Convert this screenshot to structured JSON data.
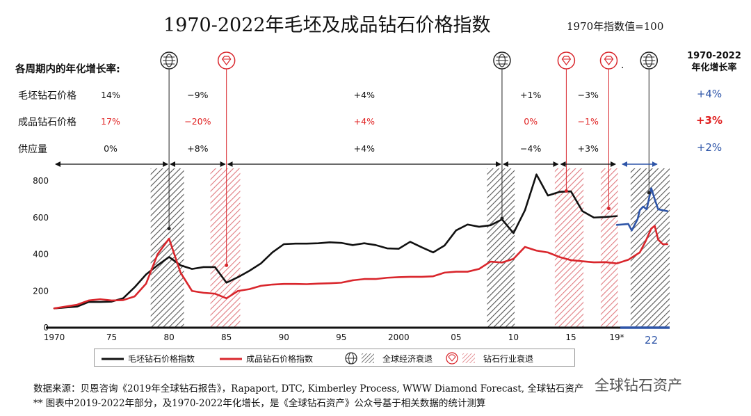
{
  "title": "1970-2022年毛坯及成品钻石价格指数",
  "subtitle": "1970年指数值=100",
  "rates_section": {
    "title": "各周期内的年化增长率:",
    "cagr_header": [
      "1970-2022",
      "年化增长率"
    ],
    "rows": [
      {
        "label": "毛坯钻石价格",
        "values": [
          "14%",
          "−9%",
          "+4%",
          "+1%",
          "−3%"
        ],
        "total": "+4%"
      },
      {
        "label": "成品钻石价格",
        "values": [
          "17%",
          "−20%",
          "+4%",
          "0%",
          "−1%"
        ],
        "total": "+3%"
      },
      {
        "label": "供应量",
        "values": [
          "0%",
          "+8%",
          "+4%",
          "−4%",
          "+3%"
        ],
        "total": "+2%"
      }
    ],
    "period_boundaries": [
      1970,
      1980,
      1985,
      2009,
      2014,
      2019,
      2022
    ],
    "dot": "."
  },
  "colors": {
    "rough": "#111111",
    "polished": "#d9262c",
    "forecast": "#2e55a8",
    "recession_hatch": "#555555",
    "industry_hatch": "#e07a80"
  },
  "chart_data": {
    "type": "line",
    "title": "1970-2022年毛坯及成品钻石价格指数",
    "xlabel": "",
    "ylabel": "",
    "xlim": [
      1970,
      2024
    ],
    "ylim": [
      0,
      850
    ],
    "yticks": [
      0,
      200,
      400,
      600,
      800
    ],
    "xticks": [
      {
        "year": 1970,
        "label": "1970"
      },
      {
        "year": 1975,
        "label": "75"
      },
      {
        "year": 1980,
        "label": "80"
      },
      {
        "year": 1985,
        "label": "85"
      },
      {
        "year": 1990,
        "label": "90"
      },
      {
        "year": 1995,
        "label": "95"
      },
      {
        "year": 2000,
        "label": "2000"
      },
      {
        "year": 2005,
        "label": "05"
      },
      {
        "year": 2010,
        "label": "10"
      },
      {
        "year": 2015,
        "label": "15"
      },
      {
        "year": 2019,
        "label": "19*"
      },
      {
        "year": 2022,
        "label": "22"
      }
    ],
    "series": [
      {
        "name": "毛坯钻石价格指数",
        "color": "#111111",
        "x": [
          1970,
          1971,
          1972,
          1973,
          1974,
          1975,
          1976,
          1977,
          1978,
          1979,
          1980,
          1981,
          1982,
          1983,
          1984,
          1985,
          1986,
          1987,
          1988,
          1989,
          1990,
          1991,
          1992,
          1993,
          1994,
          1995,
          1996,
          1997,
          1998,
          1999,
          2000,
          2001,
          2002,
          2003,
          2004,
          2005,
          2006,
          2007,
          2008,
          2009,
          2010,
          2011,
          2012,
          2013,
          2014,
          2015,
          2016,
          2017,
          2018,
          2019
        ],
        "y": [
          105,
          110,
          115,
          140,
          140,
          142,
          160,
          220,
          290,
          340,
          385,
          340,
          320,
          330,
          330,
          245,
          275,
          310,
          350,
          410,
          455,
          458,
          458,
          460,
          465,
          462,
          450,
          460,
          450,
          432,
          430,
          468,
          438,
          410,
          448,
          530,
          562,
          550,
          558,
          590,
          515,
          640,
          835,
          720,
          740,
          743,
          635,
          600,
          603,
          608
        ]
      },
      {
        "name": "毛坯钻石价格指数（2019-2022测算）",
        "color": "#2e55a8",
        "x": [
          2019,
          2020,
          2020.3,
          2020.8,
          2021,
          2021.3,
          2021.6,
          2022,
          2022.3,
          2022.6,
          2023,
          2023.4
        ],
        "y": [
          560,
          565,
          530,
          590,
          640,
          660,
          645,
          760,
          700,
          645,
          640,
          635
        ]
      },
      {
        "name": "成品钻石价格指数",
        "color": "#d9262c",
        "x": [
          1970,
          1971,
          1972,
          1973,
          1974,
          1975,
          1976,
          1977,
          1978,
          1979,
          1980,
          1981,
          1982,
          1983,
          1984,
          1985,
          1986,
          1987,
          1988,
          1989,
          1990,
          1991,
          1992,
          1993,
          1994,
          1995,
          1996,
          1997,
          1998,
          1999,
          2000,
          2001,
          2002,
          2003,
          2004,
          2005,
          2006,
          2007,
          2008,
          2009,
          2010,
          2011,
          2012,
          2013,
          2014,
          2015,
          2016,
          2017,
          2018,
          2019,
          2020,
          2021,
          2021.5,
          2022,
          2022.3,
          2022.6,
          2023,
          2023.4
        ],
        "y": [
          105,
          115,
          125,
          148,
          155,
          148,
          150,
          170,
          240,
          400,
          485,
          300,
          200,
          190,
          185,
          160,
          200,
          210,
          228,
          235,
          238,
          238,
          237,
          240,
          242,
          245,
          258,
          265,
          265,
          272,
          275,
          277,
          277,
          280,
          300,
          305,
          305,
          320,
          360,
          355,
          375,
          440,
          420,
          410,
          385,
          368,
          362,
          356,
          357,
          350,
          370,
          410,
          470,
          540,
          555,
          480,
          455,
          455
        ]
      }
    ],
    "recession_periods": [
      [
        1978.4,
        1981.3
      ],
      [
        2007.7,
        2010.1
      ],
      [
        2020.2,
        2023.6
      ]
    ],
    "industry_periods": [
      [
        1983.6,
        1986.2
      ],
      [
        2013.6,
        2016.1
      ],
      [
        2017.6,
        2019.1
      ]
    ],
    "event_markers": [
      {
        "type": "recession",
        "year": 1980,
        "value": 540
      },
      {
        "type": "industry",
        "year": 1985,
        "value": 340
      },
      {
        "type": "recession",
        "year": 2009,
        "value": 595
      },
      {
        "type": "industry",
        "year": 2014.6,
        "value": 745
      },
      {
        "type": "industry",
        "year": 2018.3,
        "value": 650
      },
      {
        "type": "recession",
        "year": 2021.8,
        "value": 735
      }
    ],
    "legend": [
      {
        "key": "rough",
        "label": "毛坯钻石价格指数"
      },
      {
        "key": "polished",
        "label": "成品钻石价格指数"
      },
      {
        "key": "recession",
        "label": "全球经济衰退"
      },
      {
        "key": "industry",
        "label": "钻石行业衰退"
      }
    ]
  },
  "footer": {
    "line1": "数据来源：贝恩咨询《2019年全球钻石报告》，Rapaport, DTC, Kimberley Process, WWW Diamond Forecast, 全球钻石资产",
    "line2": "** 图表中2019-2022年部分，及1970-2022年化增长，是《全球钻石资产》公众号基于相关数据的统计测算"
  },
  "watermark": "全球钻石资产"
}
